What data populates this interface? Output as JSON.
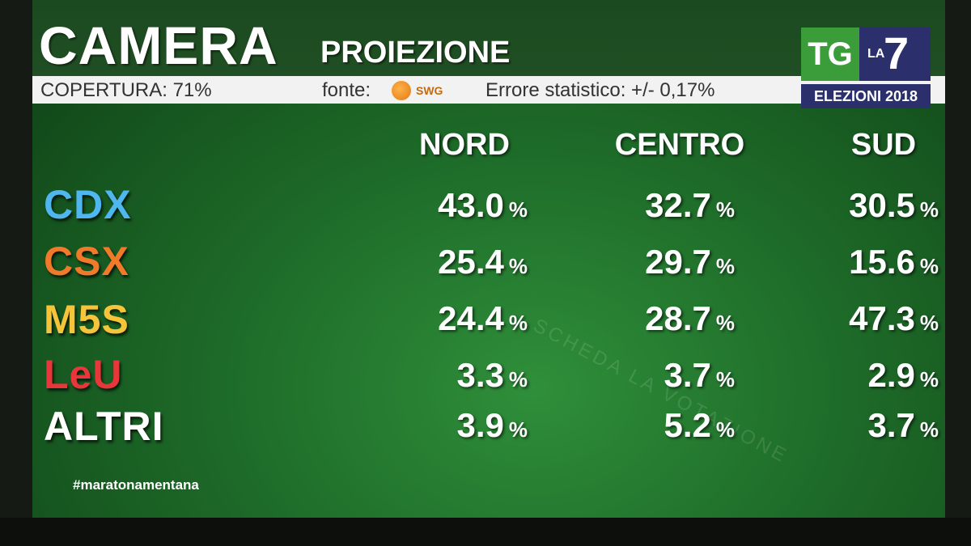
{
  "header": {
    "title": "CAMERA",
    "subtitle": "PROIEZIONE"
  },
  "info": {
    "coverage": "COPERTURA:  71%",
    "source_label": "fonte:",
    "source_brand": "SWG",
    "error": "Errore statistico: +/- 0,17%"
  },
  "logo": {
    "tg": "TG",
    "la": "LA",
    "seven": "7",
    "edition": "ELEZIONI 2018"
  },
  "columns": [
    "NORD",
    "CENTRO",
    "SUD"
  ],
  "parties": [
    {
      "name": "CDX",
      "color": "#4fb6f0",
      "values": [
        "43.0",
        "32.7",
        "30.5"
      ]
    },
    {
      "name": "CSX",
      "color": "#f07a2a",
      "values": [
        "25.4",
        "29.7",
        "15.6"
      ]
    },
    {
      "name": "M5S",
      "color": "#f5c43a",
      "values": [
        "24.4",
        "28.7",
        "47.3"
      ]
    },
    {
      "name": "LeU",
      "color": "#e8373a",
      "values": [
        "3.3",
        "3.7",
        "2.9"
      ]
    },
    {
      "name": "ALTRI",
      "color": "#ffffff",
      "values": [
        "3.9",
        "5.2",
        "3.7"
      ]
    }
  ],
  "percent_sign": "%",
  "hashtag": "#maratonamentana",
  "watermark": "SCHEDA   LA VOTAZIONE"
}
